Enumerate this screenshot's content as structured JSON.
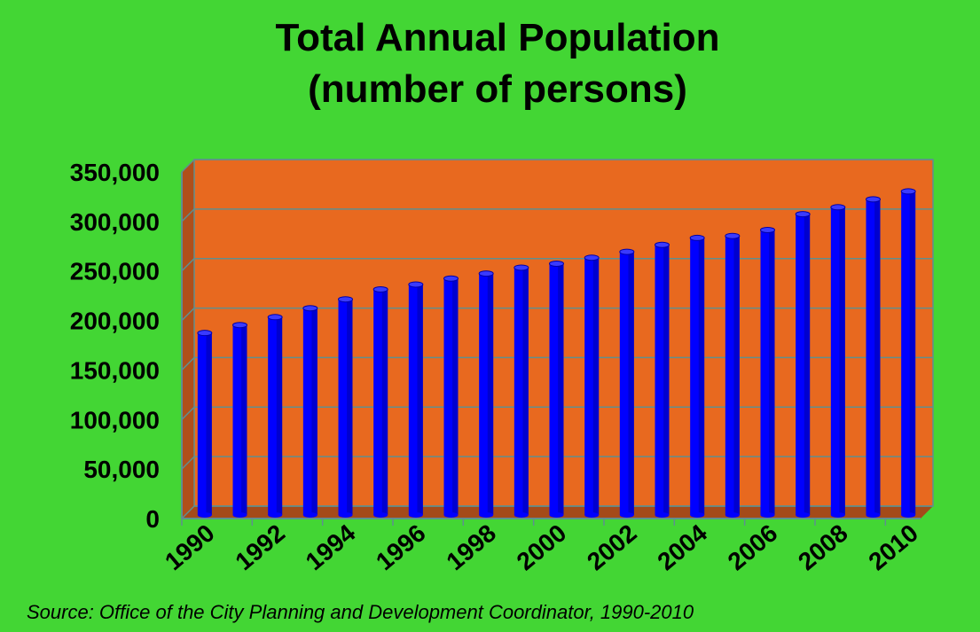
{
  "chart_data": {
    "type": "bar",
    "title": "Total Annual Population",
    "subtitle": "(number of persons)",
    "categories": [
      "1990",
      "1991",
      "1992",
      "1993",
      "1994",
      "1995",
      "1996",
      "1997",
      "1998",
      "1999",
      "2000",
      "2001",
      "2002",
      "2003",
      "2004",
      "2005",
      "2006",
      "2007",
      "2008",
      "2009",
      "2010"
    ],
    "x_tick_labels": [
      "1990",
      "1992",
      "1994",
      "1996",
      "1998",
      "2000",
      "2002",
      "2004",
      "2006",
      "2008",
      "2010"
    ],
    "series": [
      {
        "values": [
          182000,
          190000,
          198000,
          207000,
          216000,
          226000,
          231000,
          237000,
          242000,
          248000,
          252000,
          258000,
          264000,
          271000,
          278000,
          280000,
          286000,
          302000,
          309000,
          317000,
          325000
        ]
      }
    ],
    "y_tick_labels": [
      "0",
      "50,000",
      "100,000",
      "150,000",
      "200,000",
      "250,000",
      "300,000",
      "350,000"
    ],
    "ylim": [
      0,
      350000
    ],
    "grid": true,
    "xlabel": "",
    "ylabel": "",
    "colors": {
      "background": "#43d634",
      "plot_area": "#e8691f",
      "plot_side_wall": "#b04f1a",
      "floor": "#a44a19",
      "bar": "#0000ff",
      "bar_dark": "#0000a8",
      "bar_top": "#3a3aff",
      "gridline": "#5f8f8f"
    }
  },
  "source": "Source: Office of the City Planning and Development Coordinator, 1990-2010"
}
